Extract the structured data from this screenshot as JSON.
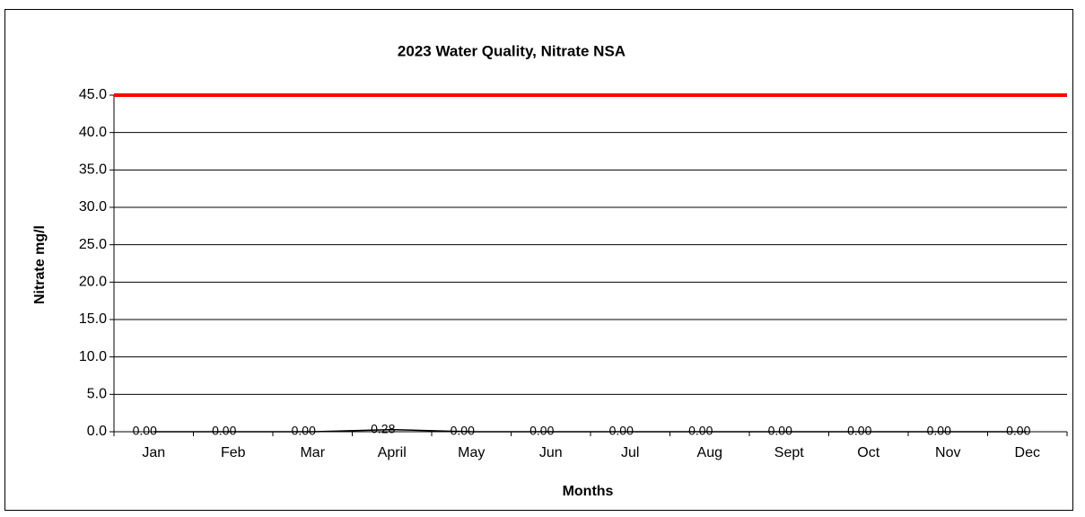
{
  "chart_data": {
    "type": "line",
    "title": "2023 Water Quality,  Nitrate NSA",
    "x_label": "Months",
    "y_label": "Nitrate mg/l",
    "categories": [
      "Jan",
      "Feb",
      "Mar",
      "April",
      "May",
      "Jun",
      "Jul",
      "Aug",
      "Sept",
      "Oct",
      "Nov",
      "Dec"
    ],
    "series": [
      {
        "color": "#000000",
        "values": [
          0,
          0,
          0,
          0.28,
          0,
          0,
          0,
          0,
          0,
          0,
          0,
          0
        ],
        "value_labels": [
          "0.00",
          "0.00",
          "0.00",
          "0.28",
          "0.00",
          "0.00",
          "0.00",
          "0.00",
          "0.00",
          "0.00",
          "0.00",
          "0.00"
        ]
      },
      {
        "color": "#ff0000",
        "values": [
          45,
          45,
          45,
          45,
          45,
          45,
          45,
          45,
          45,
          45,
          45,
          45
        ]
      }
    ],
    "ylim": [
      0,
      45
    ],
    "yticks": [
      {
        "value": 0,
        "label": "0.0"
      },
      {
        "value": 5,
        "label": "5.0"
      },
      {
        "value": 10,
        "label": "10.0"
      },
      {
        "value": 15,
        "label": "15.0"
      },
      {
        "value": 20,
        "label": "20.0"
      },
      {
        "value": 25,
        "label": "25.0"
      },
      {
        "value": 30,
        "label": "30.0"
      },
      {
        "value": 35,
        "label": "35.0"
      },
      {
        "value": 40,
        "label": "40.0"
      },
      {
        "value": 45,
        "label": "45.0"
      }
    ],
    "grid": true
  }
}
